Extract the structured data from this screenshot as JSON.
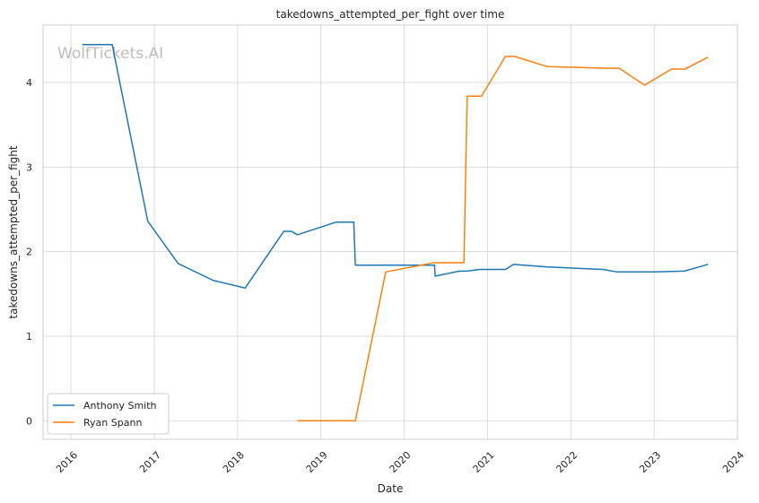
{
  "chart_data": {
    "type": "line",
    "title": "takedowns_attempted_per_fight over time",
    "xlabel": "Date",
    "ylabel": "takedowns_attempted_per_fight",
    "watermark": "WolfTickets.AI",
    "xlim": [
      "2015-09-01",
      "2024-01-01"
    ],
    "ylim": [
      -0.22,
      4.68
    ],
    "x_ticks": [
      "2016-01-01",
      "2017-01-01",
      "2018-01-01",
      "2019-01-01",
      "2020-01-01",
      "2021-01-01",
      "2022-01-01",
      "2023-01-01",
      "2024-01-01"
    ],
    "x_tick_labels": [
      "2016",
      "2017",
      "2018",
      "2019",
      "2020",
      "2021",
      "2022",
      "2023",
      "2024"
    ],
    "y_ticks": [
      0,
      1,
      2,
      3,
      4
    ],
    "y_tick_labels": [
      "0",
      "1",
      "2",
      "3",
      "4"
    ],
    "grid": true,
    "legend_position": "lower-left",
    "series": [
      {
        "name": "Anthony Smith",
        "color": "#1f77b4",
        "points": [
          [
            "2016-02-20",
            4.45
          ],
          [
            "2016-06-30",
            4.45
          ],
          [
            "2016-12-03",
            2.36
          ],
          [
            "2017-04-15",
            1.86
          ],
          [
            "2017-09-16",
            1.66
          ],
          [
            "2018-02-03",
            1.57
          ],
          [
            "2018-07-22",
            2.24
          ],
          [
            "2018-08-25",
            2.24
          ],
          [
            "2018-09-20",
            2.2
          ],
          [
            "2019-03-09",
            2.35
          ],
          [
            "2019-05-25",
            2.35
          ],
          [
            "2019-06-01",
            1.84
          ],
          [
            "2020-05-13",
            1.84
          ],
          [
            "2020-05-16",
            1.71
          ],
          [
            "2020-08-29",
            1.77
          ],
          [
            "2020-10-01",
            1.77
          ],
          [
            "2020-11-28",
            1.79
          ],
          [
            "2021-03-20",
            1.79
          ],
          [
            "2021-04-24",
            1.85
          ],
          [
            "2021-09-15",
            1.82
          ],
          [
            "2022-05-21",
            1.79
          ],
          [
            "2022-07-23",
            1.76
          ],
          [
            "2023-01-01",
            1.76
          ],
          [
            "2023-05-13",
            1.77
          ],
          [
            "2023-08-25",
            1.85
          ]
        ]
      },
      {
        "name": "Ryan Spann",
        "color": "#ff7f0e",
        "points": [
          [
            "2018-09-20",
            0.0
          ],
          [
            "2019-06-01",
            0.0
          ],
          [
            "2019-10-12",
            1.76
          ],
          [
            "2020-05-10",
            1.87
          ],
          [
            "2020-09-19",
            1.87
          ],
          [
            "2020-10-03",
            3.84
          ],
          [
            "2020-12-05",
            3.84
          ],
          [
            "2021-03-20",
            4.31
          ],
          [
            "2021-04-28",
            4.31
          ],
          [
            "2021-09-18",
            4.19
          ],
          [
            "2022-06-01",
            4.17
          ],
          [
            "2022-08-01",
            4.17
          ],
          [
            "2022-11-19",
            3.97
          ],
          [
            "2023-03-18",
            4.16
          ],
          [
            "2023-05-15",
            4.16
          ],
          [
            "2023-08-25",
            4.3
          ]
        ]
      }
    ]
  }
}
